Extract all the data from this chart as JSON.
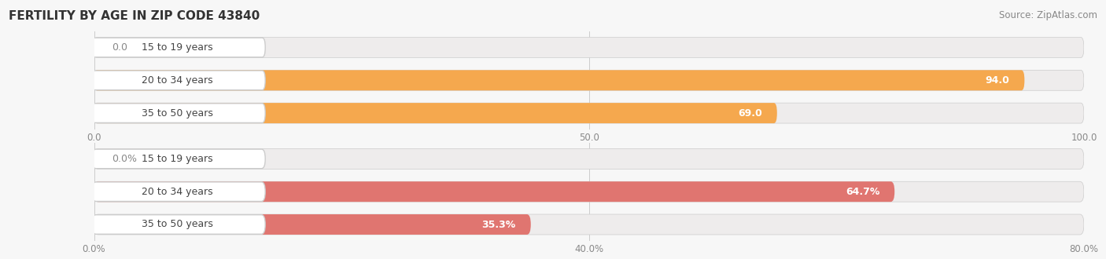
{
  "title": "FERTILITY BY AGE IN ZIP CODE 43840",
  "source": "Source: ZipAtlas.com",
  "chart1": {
    "categories": [
      "15 to 19 years",
      "20 to 34 years",
      "35 to 50 years"
    ],
    "values": [
      0.0,
      94.0,
      69.0
    ],
    "xlim": [
      0,
      100
    ],
    "xticks": [
      0.0,
      50.0,
      100.0
    ],
    "xtick_labels": [
      "0.0",
      "50.0",
      "100.0"
    ],
    "bar_color": "#F5A84E",
    "bar_light_color": "#F9D0A0",
    "bar_bg_color": "#EEECEC",
    "value_threshold_inside": 15
  },
  "chart2": {
    "categories": [
      "15 to 19 years",
      "20 to 34 years",
      "35 to 50 years"
    ],
    "values": [
      0.0,
      64.7,
      35.3
    ],
    "xlim": [
      0,
      80
    ],
    "xticks": [
      0.0,
      40.0,
      80.0
    ],
    "xtick_labels": [
      "0.0%",
      "40.0%",
      "80.0%"
    ],
    "bar_color": "#E07570",
    "bar_light_color": "#EFA8A5",
    "bar_bg_color": "#EEECEC",
    "value_threshold_inside": 10
  },
  "label_fontsize": 9,
  "tick_fontsize": 8.5,
  "title_fontsize": 11,
  "source_fontsize": 8.5,
  "bar_height": 0.62,
  "bg_color": "#F7F7F7"
}
